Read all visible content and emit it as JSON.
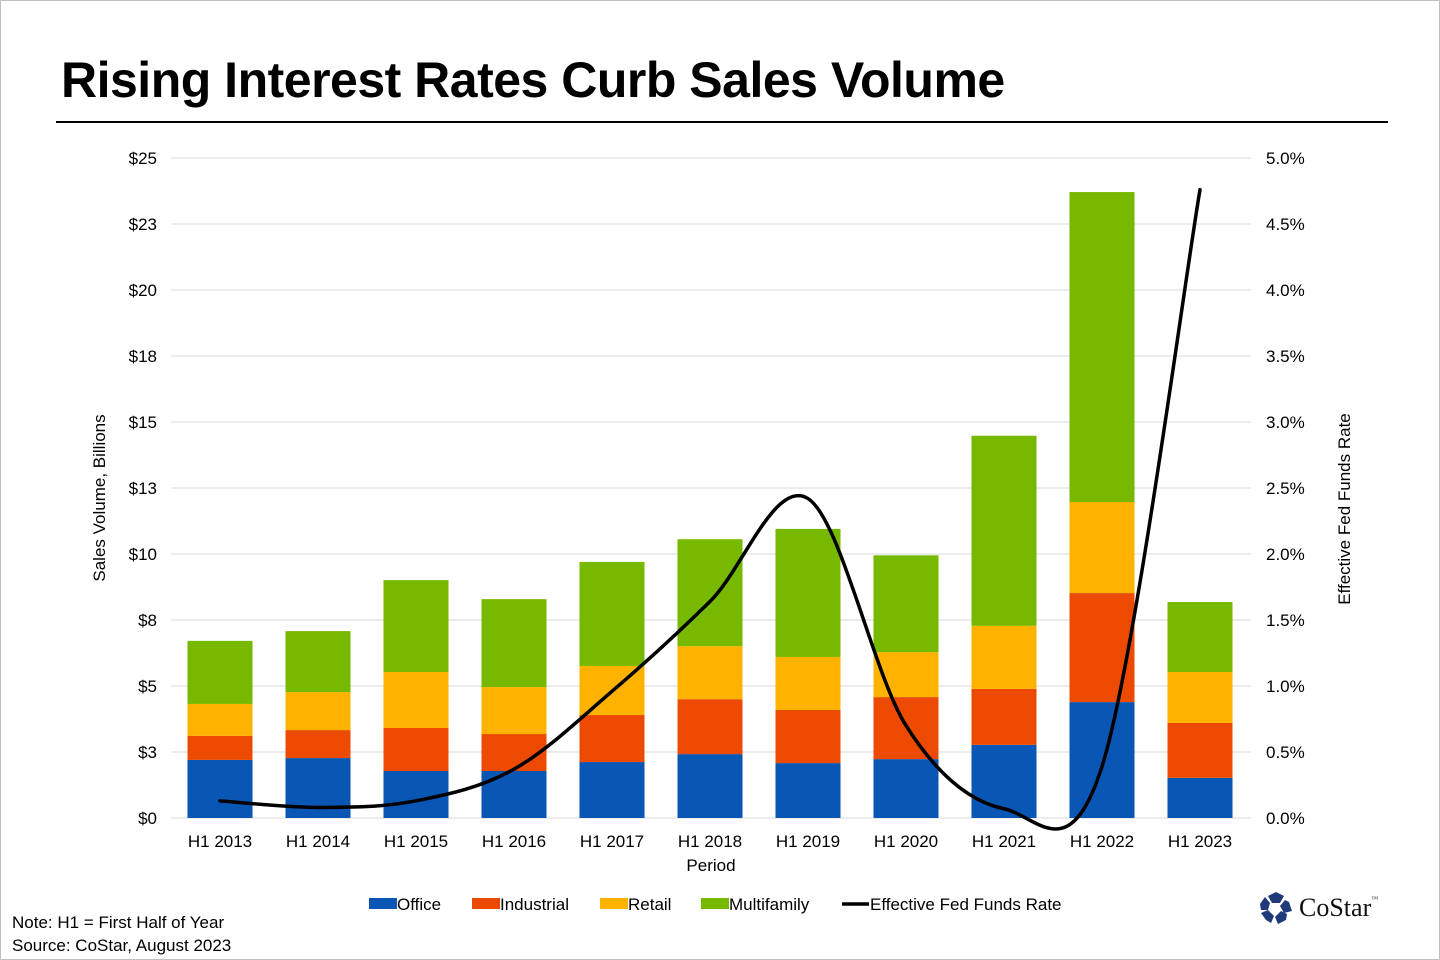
{
  "title": "Rising Interest Rates Curb Sales Volume",
  "notes": [
    "Note: H1 = First Half of Year",
    "Source: CoStar, August 2023"
  ],
  "logo": {
    "text": "CoStar",
    "tm": "™"
  },
  "colors": {
    "office": "#0A56B4",
    "industrial": "#EC4A00",
    "retail": "#FFB300",
    "multifamily": "#76B900",
    "rate": "#000000",
    "grid": "#d9d9d9"
  },
  "chart_data": {
    "type": "bar",
    "subtype": "stacked-bar-with-line",
    "title": "Rising Interest Rates Curb Sales Volume",
    "xlabel": "Period",
    "ylabel": "Sales Volume, Billions",
    "y2label": "Effective Fed Funds Rate",
    "ylim": [
      0,
      25
    ],
    "y2lim": [
      0,
      5
    ],
    "yticks": [
      0,
      2.5,
      5,
      7.5,
      10,
      12.5,
      15,
      17.5,
      20,
      22.5,
      25
    ],
    "ytick_labels": [
      "$0",
      "$3",
      "$5",
      "$8",
      "$10",
      "$13",
      "$15",
      "$18",
      "$20",
      "$23",
      "$25"
    ],
    "y2ticks": [
      0,
      0.5,
      1,
      1.5,
      2,
      2.5,
      3,
      3.5,
      4,
      4.5,
      5
    ],
    "y2tick_labels": [
      "0.0%",
      "0.5%",
      "1.0%",
      "1.5%",
      "2.0%",
      "2.5%",
      "3.0%",
      "3.5%",
      "4.0%",
      "4.5%",
      "5.0%"
    ],
    "grid": true,
    "legend_position": "bottom",
    "categories": [
      "H1 2013",
      "H1 2014",
      "H1 2015",
      "H1 2016",
      "H1 2017",
      "H1 2018",
      "H1 2019",
      "H1 2020",
      "H1 2021",
      "H1 2022",
      "H1 2023"
    ],
    "series": [
      {
        "name": "Office",
        "key": "office",
        "axis": "left",
        "values": [
          2.2,
          2.27,
          1.78,
          1.78,
          2.12,
          2.42,
          2.08,
          2.23,
          2.77,
          4.39,
          1.52
        ]
      },
      {
        "name": "Industrial",
        "key": "industrial",
        "axis": "left",
        "values": [
          0.91,
          1.06,
          1.63,
          1.4,
          1.78,
          2.08,
          2.01,
          2.35,
          2.12,
          4.13,
          2.08
        ]
      },
      {
        "name": "Retail",
        "key": "retail",
        "axis": "left",
        "values": [
          1.21,
          1.44,
          2.12,
          1.78,
          1.86,
          2.01,
          2.01,
          1.7,
          2.39,
          3.45,
          1.93
        ]
      },
      {
        "name": "Multifamily",
        "key": "multifamily",
        "axis": "left",
        "values": [
          2.39,
          2.31,
          3.48,
          3.33,
          3.94,
          4.05,
          4.85,
          3.67,
          7.2,
          11.74,
          2.65
        ]
      }
    ],
    "line_series": {
      "name": "Effective Fed Funds Rate",
      "key": "rate",
      "axis": "right",
      "values": [
        0.13,
        0.08,
        0.13,
        0.37,
        0.96,
        1.64,
        2.42,
        0.7,
        0.07,
        0.39,
        4.76
      ]
    }
  }
}
